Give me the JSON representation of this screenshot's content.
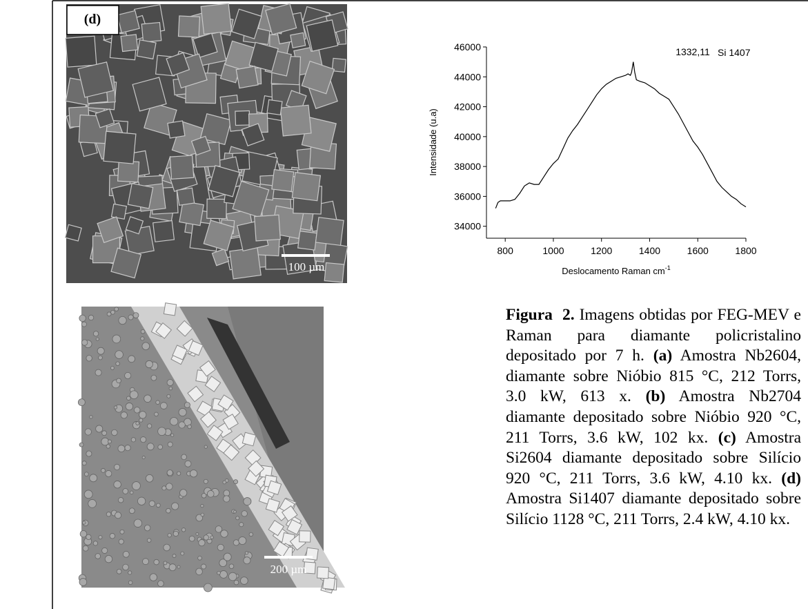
{
  "images": [
    {
      "label": "(d)",
      "scale_bar": "100 µm"
    },
    {
      "scale_bar": "200 µm"
    }
  ],
  "chart_data": {
    "type": "line",
    "annotations": [
      "1332,11",
      "Si 1407"
    ],
    "x_label": {
      "text": "Deslocamento Raman cm",
      "superscript": "-1"
    },
    "y_label": "Intensidade (u.a)",
    "x": [
      760,
      770,
      780,
      800,
      820,
      840,
      860,
      880,
      900,
      920,
      940,
      960,
      980,
      1000,
      1020,
      1040,
      1060,
      1080,
      1100,
      1120,
      1140,
      1160,
      1180,
      1200,
      1220,
      1240,
      1260,
      1280,
      1300,
      1310,
      1320,
      1325,
      1332.11,
      1338,
      1345,
      1360,
      1380,
      1400,
      1420,
      1440,
      1460,
      1480,
      1500,
      1520,
      1540,
      1560,
      1580,
      1600,
      1620,
      1640,
      1660,
      1680,
      1700,
      1720,
      1740,
      1760,
      1780,
      1800
    ],
    "values": [
      35200,
      35600,
      35700,
      35700,
      35700,
      35800,
      36200,
      36700,
      36900,
      36800,
      36800,
      37300,
      37800,
      38200,
      38500,
      39200,
      39900,
      40400,
      40800,
      41300,
      41800,
      42300,
      42800,
      43200,
      43500,
      43700,
      43900,
      44000,
      44100,
      44200,
      44100,
      44300,
      45000,
      44300,
      43800,
      43700,
      43600,
      43400,
      43200,
      42900,
      42700,
      42500,
      42000,
      41500,
      40900,
      40300,
      39700,
      39300,
      38800,
      38200,
      37600,
      37000,
      36600,
      36300,
      36000,
      35800,
      35500,
      35300
    ],
    "color": "#000000",
    "xlim": [
      722,
      1800
    ],
    "ylim": [
      33200,
      46000
    ],
    "xticks": [
      800,
      1000,
      1200,
      1400,
      1600,
      1800
    ],
    "yticks": [
      34000,
      36000,
      38000,
      40000,
      42000,
      44000,
      46000
    ]
  },
  "caption": {
    "runs": [
      {
        "text": "Figura  2.",
        "bold": true
      },
      {
        "text": " Imagens obtidas por FEG-MEV e Raman para diamante policristalino depositado por 7 h. ",
        "bold": false
      },
      {
        "text": "(a)",
        "bold": true
      },
      {
        "text": " Amostra Nb2604, diamante sobre Nióbio 815 °C, 212 Torrs, 3.0 kW, 613 x. ",
        "bold": false
      },
      {
        "text": "(b)",
        "bold": true
      },
      {
        "text": " Amostra Nb2704 diamante depositado sobre Nióbio 920 °C, 211 Torrs, 3.6 kW, 102 kx. ",
        "bold": false
      },
      {
        "text": "(c)",
        "bold": true
      },
      {
        "text": " Amostra Si2604 diamante depositado sobre Silício 920 °C, 211 Torrs, 3.6 kW, 4.10 kx. ",
        "bold": false
      },
      {
        "text": "(d)",
        "bold": true
      },
      {
        "text": " Amostra Si1407 diamante depositado sobre Silício 1128 °C, 211 Torrs, 2.4 kW, 4.10 kx.",
        "bold": false
      }
    ]
  }
}
